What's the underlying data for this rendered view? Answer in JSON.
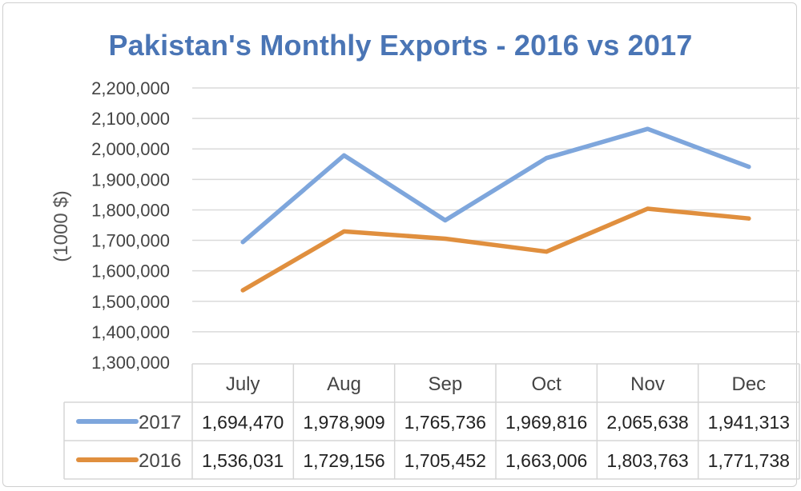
{
  "chart_data": {
    "type": "line",
    "title": "Pakistan's Monthly Exports - 2016 vs 2017",
    "ylabel": "(1000 $)",
    "xlabel": "",
    "categories": [
      "July",
      "Aug",
      "Sep",
      "Oct",
      "Nov",
      "Dec"
    ],
    "ylim": [
      1300000,
      2200000
    ],
    "yticks": [
      "1,300,000",
      "1,400,000",
      "1,500,000",
      "1,600,000",
      "1,700,000",
      "1,800,000",
      "1,900,000",
      "2,000,000",
      "2,100,000",
      "2,200,000"
    ],
    "grid": true,
    "legend": "data-table",
    "series": [
      {
        "name": "2017",
        "color": "#7ea6dc",
        "values": [
          1694470,
          1978909,
          1765736,
          1969816,
          2065638,
          1941313
        ],
        "labels": [
          "1,694,470",
          "1,978,909",
          "1,765,736",
          "1,969,816",
          "2,065,638",
          "1,941,313"
        ]
      },
      {
        "name": "2016",
        "color": "#e08f3e",
        "values": [
          1536031,
          1729156,
          1705452,
          1663006,
          1803763,
          1771738
        ],
        "labels": [
          "1,536,031",
          "1,729,156",
          "1,705,452",
          "1,663,006",
          "1,803,763",
          "1,771,738"
        ]
      }
    ]
  }
}
